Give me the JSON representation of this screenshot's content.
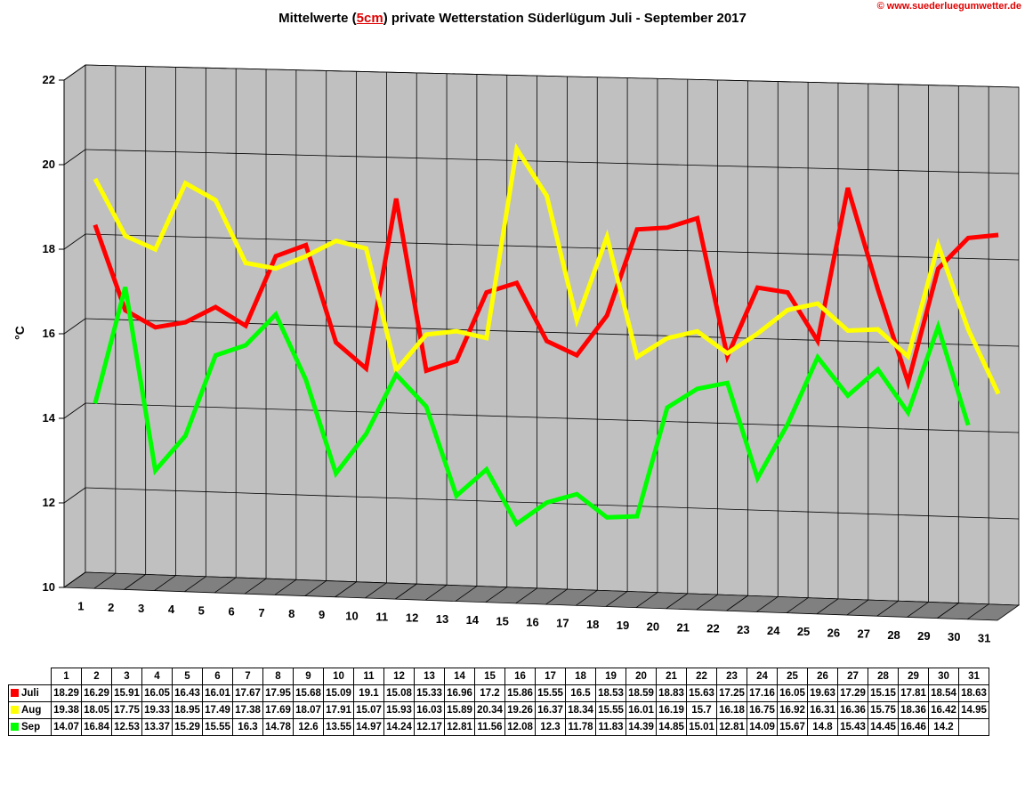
{
  "title_parts": [
    "Mittelwerte (",
    "5cm",
    ") private Wetterstation Süderlügum Juli - September 2017"
  ],
  "copyright": "© www.suederluegumwetter.de",
  "colors": {
    "Juli": "#ff0000",
    "Aug": "#ffff00",
    "Sep": "#00ff00",
    "wall": "#c0c0c0",
    "floor": "#808080"
  },
  "chart_data": {
    "type": "line",
    "title": "Mittelwerte (5cm) private Wetterstation Süderlügum Juli - September 2017",
    "ylabel": "°C",
    "xlabel": "",
    "ylim": [
      10,
      22
    ],
    "yticks": [
      10,
      12,
      14,
      16,
      18,
      20,
      22
    ],
    "grid": true,
    "categories": [
      "1",
      "2",
      "3",
      "4",
      "5",
      "6",
      "7",
      "8",
      "9",
      "10",
      "11",
      "12",
      "13",
      "14",
      "15",
      "16",
      "17",
      "18",
      "19",
      "20",
      "21",
      "22",
      "23",
      "24",
      "25",
      "26",
      "27",
      "28",
      "29",
      "30",
      "31"
    ],
    "series": [
      {
        "name": "Juli",
        "values": [
          18.29,
          16.29,
          15.91,
          16.05,
          16.43,
          16.01,
          17.67,
          17.95,
          15.68,
          15.09,
          19.1,
          15.08,
          15.33,
          16.96,
          17.2,
          15.86,
          15.55,
          16.5,
          18.53,
          18.59,
          18.83,
          15.63,
          17.25,
          17.16,
          16.05,
          19.63,
          17.29,
          15.15,
          17.81,
          18.54,
          18.63
        ]
      },
      {
        "name": "Aug",
        "values": [
          19.38,
          18.05,
          17.75,
          19.33,
          18.95,
          17.49,
          17.38,
          17.69,
          18.07,
          17.91,
          15.07,
          15.93,
          16.03,
          15.89,
          20.34,
          19.26,
          16.37,
          18.34,
          15.55,
          16.01,
          16.19,
          15.7,
          16.18,
          16.75,
          16.92,
          16.31,
          16.36,
          15.75,
          18.36,
          16.42,
          14.95
        ]
      },
      {
        "name": "Sep",
        "values": [
          14.07,
          16.84,
          12.53,
          13.37,
          15.29,
          15.55,
          16.3,
          14.78,
          12.6,
          13.55,
          14.97,
          14.24,
          12.17,
          12.81,
          11.56,
          12.08,
          12.3,
          11.78,
          11.83,
          14.39,
          14.85,
          15.01,
          12.81,
          14.09,
          15.67,
          14.8,
          15.43,
          14.45,
          16.46,
          14.2,
          null
        ]
      }
    ],
    "table_rows": [
      {
        "label": "Juli",
        "cells": [
          "18.29",
          "16.29",
          "15.91",
          "16.05",
          "16.43",
          "16.01",
          "17.67",
          "17.95",
          "15.68",
          "15.09",
          "19.1",
          "15.08",
          "15.33",
          "16.96",
          "17.2",
          "15.86",
          "15.55",
          "16.5",
          "18.53",
          "18.59",
          "18.83",
          "15.63",
          "17.25",
          "17.16",
          "16.05",
          "19.63",
          "17.29",
          "15.15",
          "17.81",
          "18.54",
          "18.63"
        ]
      },
      {
        "label": "Aug",
        "cells": [
          "19.38",
          "18.05",
          "17.75",
          "19.33",
          "18.95",
          "17.49",
          "17.38",
          "17.69",
          "18.07",
          "17.91",
          "15.07",
          "15.93",
          "16.03",
          "15.89",
          "20.34",
          "19.26",
          "16.37",
          "18.34",
          "15.55",
          "16.01",
          "16.19",
          "15.7",
          "16.18",
          "16.75",
          "16.92",
          "16.31",
          "16.36",
          "15.75",
          "18.36",
          "16.42",
          "14.95"
        ]
      },
      {
        "label": "Sep",
        "cells": [
          "14.07",
          "16.84",
          "12.53",
          "13.37",
          "15.29",
          "15.55",
          "16.3",
          "14.78",
          "12.6",
          "13.55",
          "14.97",
          "14.24",
          "12.17",
          "12.81",
          "11.56",
          "12.08",
          "12.3",
          "11.78",
          "11.83",
          "14.39",
          "14.85",
          "15.01",
          "12.81",
          "14.09",
          "15.67",
          "14.8",
          "15.43",
          "14.45",
          "16.46",
          "14.2",
          ""
        ]
      }
    ]
  }
}
